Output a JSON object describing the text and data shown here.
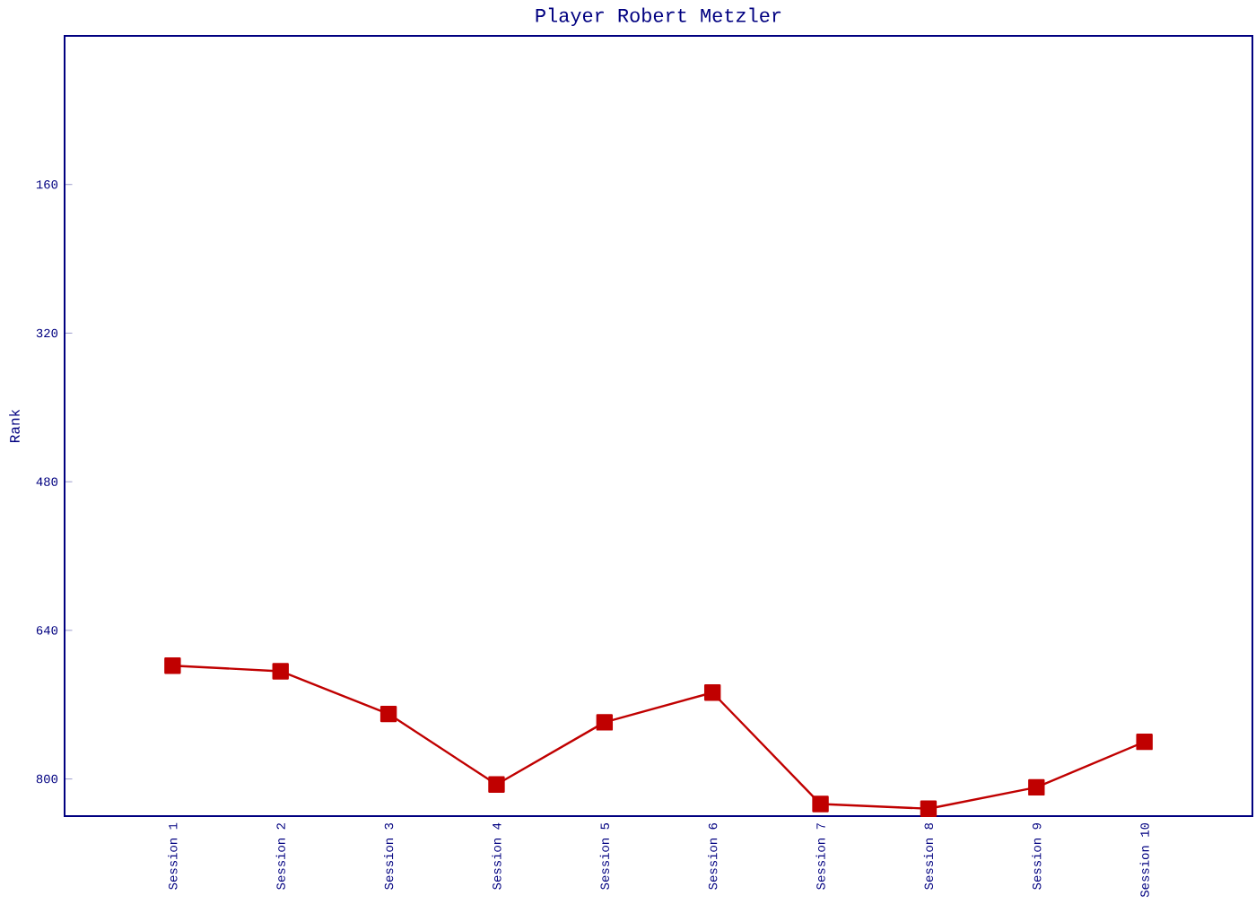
{
  "chart_data": {
    "type": "line",
    "title": "Player Robert Metzler",
    "ylabel": "Rank",
    "categories": [
      "Session 1",
      "Session 2",
      "Session 3",
      "Session 4",
      "Session 5",
      "Session 6",
      "Session 7",
      "Session 8",
      "Session 9",
      "Session 10"
    ],
    "series": [
      {
        "color": "#c00000",
        "values": [
          678,
          684,
          730,
          806,
          739,
          707,
          827,
          832,
          809,
          760
        ]
      }
    ],
    "ylim": [
      840,
      0
    ],
    "yticks": [
      160,
      320,
      480,
      640,
      800
    ],
    "marker": "square",
    "line_style": "solid"
  }
}
